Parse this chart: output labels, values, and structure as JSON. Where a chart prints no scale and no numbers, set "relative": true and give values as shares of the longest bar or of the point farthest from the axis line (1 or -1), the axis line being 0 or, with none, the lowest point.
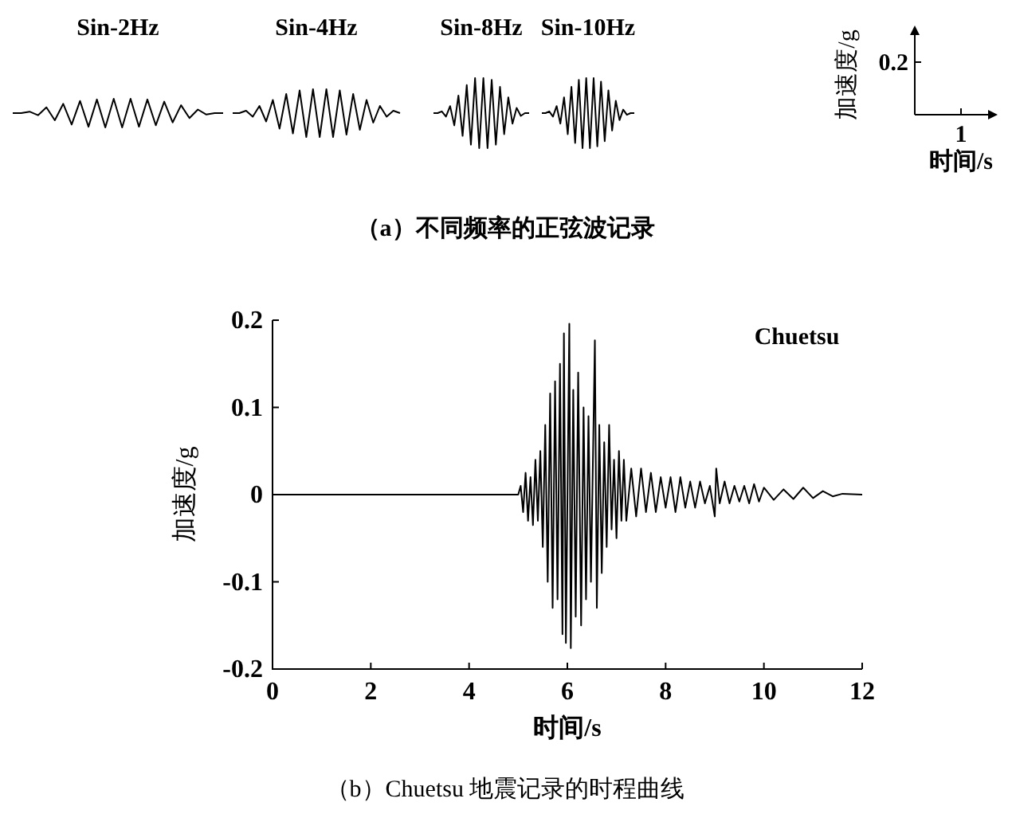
{
  "chart_data": [
    {
      "type": "line",
      "title": "Sin-2Hz",
      "relative": true,
      "categories": [
        null,
        null,
        null,
        null,
        null,
        null,
        null,
        null,
        null,
        null,
        null,
        null,
        null,
        null,
        null,
        null,
        null,
        null,
        null,
        null,
        null,
        null,
        null,
        null,
        null,
        null
      ],
      "series": [
        {
          "color": "#000000",
          "values": [
            0.5,
            0.5,
            0.55,
            0.425,
            0.7,
            0.25,
            0.825,
            0.1,
            0.925,
            0.025,
            0.975,
            0,
            1,
            0,
            1,
            0.025,
            0.975,
            0.075,
            0.9,
            0.175,
            0.775,
            0.325,
            0.625,
            0.45,
            0.5,
            0.5
          ]
        }
      ]
    },
    {
      "type": "line",
      "title": "Sin-4Hz",
      "relative": true,
      "categories": [
        null,
        null,
        null,
        null,
        null,
        null,
        null,
        null,
        null,
        null,
        null,
        null,
        null,
        null,
        null,
        null,
        null,
        null,
        null,
        null,
        null,
        null,
        null,
        null,
        null,
        null
      ],
      "series": [
        {
          "color": "#000000",
          "values": [
            0.5,
            0.5,
            0.55,
            0.425,
            0.65,
            0.325,
            0.775,
            0.175,
            0.9,
            0.075,
            0.975,
            0,
            1,
            0,
            1,
            0,
            0.975,
            0.05,
            0.9,
            0.15,
            0.775,
            0.3,
            0.65,
            0.425,
            0.55,
            0.5
          ]
        }
      ]
    },
    {
      "type": "line",
      "title": "Sin-8Hz",
      "relative": true,
      "categories": [
        null,
        null,
        null,
        null,
        null,
        null,
        null,
        null,
        null,
        null,
        null,
        null,
        null,
        null,
        null,
        null,
        null,
        null,
        null,
        null,
        null,
        null,
        null,
        null
      ],
      "series": [
        {
          "color": "#000000",
          "values": [
            0.5,
            0.5,
            0.525,
            0.45,
            0.6,
            0.325,
            0.75,
            0.175,
            0.9,
            0.05,
            1,
            0,
            1,
            0,
            0.975,
            0.05,
            0.875,
            0.2,
            0.725,
            0.35,
            0.575,
            0.46,
            0.5,
            0.5
          ]
        }
      ]
    },
    {
      "type": "line",
      "title": "Sin-10Hz",
      "relative": true,
      "categories": [
        null,
        null,
        null,
        null,
        null,
        null,
        null,
        null,
        null,
        null,
        null,
        null,
        null,
        null,
        null,
        null,
        null,
        null,
        null,
        null,
        null,
        null,
        null,
        null,
        null,
        null
      ],
      "series": [
        {
          "color": "#000000",
          "values": [
            0.5,
            0.5,
            0.525,
            0.45,
            0.6,
            0.35,
            0.725,
            0.2,
            0.875,
            0.075,
            0.975,
            0,
            1,
            0,
            1,
            0.025,
            0.95,
            0.1,
            0.825,
            0.25,
            0.675,
            0.4,
            0.55,
            0.475,
            0.5,
            0.5
          ]
        }
      ]
    },
    {
      "type": "other",
      "xlabel": "时间/s",
      "ylabel": "加速度/g",
      "annotations": [
        "0.2",
        "1",
        "（a）不同频率的正弦波记录"
      ]
    },
    {
      "type": "line",
      "xlabel": "时间/s",
      "ylabel": "加速度/g",
      "xlim": [
        0,
        12
      ],
      "ylim": [
        -0.2,
        0.2
      ],
      "xticks": [
        0,
        2,
        4,
        6,
        8,
        10,
        12
      ],
      "yticks": [
        -0.2,
        -0.1,
        0,
        0.1,
        0.2
      ],
      "annotations": [
        "Chuetsu",
        "（b）Chuetsu 地震记录的时程曲线"
      ],
      "series": [
        {
          "color": "#000000",
          "x": [
            0,
            5.0,
            5.05,
            5.1,
            5.15,
            5.2,
            5.25,
            5.3,
            5.35,
            5.4,
            5.45,
            5.5,
            5.55,
            5.6,
            5.65,
            5.7,
            5.75,
            5.8,
            5.85,
            5.9,
            5.93,
            5.97,
            6.04,
            6.07,
            6.12,
            6.17,
            6.22,
            6.28,
            6.33,
            6.38,
            6.43,
            6.48,
            6.56,
            6.6,
            6.65,
            6.7,
            6.75,
            6.8,
            6.85,
            6.9,
            6.95,
            7.0,
            7.05,
            7.1,
            7.15,
            7.2,
            7.3,
            7.4,
            7.5,
            7.6,
            7.7,
            7.8,
            7.9,
            8.0,
            8.1,
            8.2,
            8.3,
            8.4,
            8.5,
            8.6,
            8.7,
            8.8,
            8.9,
            9.0,
            9.03,
            9.1,
            9.2,
            9.3,
            9.4,
            9.5,
            9.6,
            9.7,
            9.8,
            9.9,
            10.0,
            10.2,
            10.4,
            10.6,
            10.8,
            11.0,
            11.2,
            11.4,
            11.6,
            12.0
          ],
          "values": [
            0,
            0,
            0.01,
            -0.02,
            0.025,
            -0.03,
            0.02,
            -0.035,
            0.04,
            -0.03,
            0.05,
            -0.06,
            0.08,
            -0.1,
            0.116,
            -0.13,
            0.13,
            -0.12,
            0.15,
            -0.16,
            0.185,
            -0.17,
            0.196,
            -0.176,
            0.12,
            -0.14,
            0.14,
            -0.15,
            0.1,
            -0.12,
            0.09,
            -0.1,
            0.177,
            -0.13,
            0.08,
            -0.09,
            0.06,
            -0.06,
            0.08,
            -0.04,
            0.04,
            -0.05,
            0.05,
            -0.03,
            0.04,
            -0.03,
            0.03,
            -0.025,
            0.03,
            -0.02,
            0.025,
            -0.02,
            0.02,
            -0.015,
            0.02,
            -0.02,
            0.02,
            -0.015,
            0.015,
            -0.015,
            0.015,
            -0.01,
            0.01,
            -0.025,
            0.03,
            -0.01,
            0.015,
            -0.01,
            0.01,
            -0.008,
            0.01,
            -0.01,
            0.012,
            -0.008,
            0.008,
            -0.006,
            0.006,
            -0.005,
            0.008,
            -0.004,
            0.004,
            -0.002,
            0.001,
            0
          ]
        }
      ]
    }
  ]
}
